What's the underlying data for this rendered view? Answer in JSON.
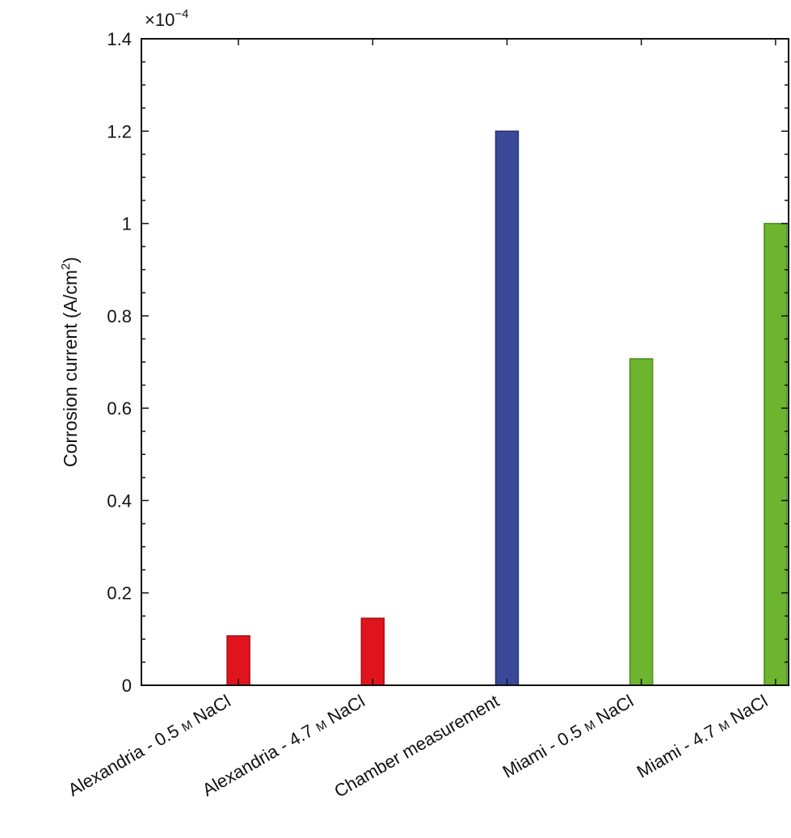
{
  "chart_data": {
    "type": "bar",
    "categories": [
      {
        "pre": "Alexandria - 0.5 ",
        "unit": "M",
        "post": " NaCl"
      },
      {
        "pre": "Alexandria - 4.7 ",
        "unit": "M",
        "post": " NaCl"
      },
      {
        "pre": "Chamber measurement",
        "unit": "",
        "post": ""
      },
      {
        "pre": "Miami - 0.5 ",
        "unit": "M",
        "post": " NaCl"
      },
      {
        "pre": "Miami - 4.7 ",
        "unit": "M",
        "post": " NaCl"
      }
    ],
    "values": [
      0.107,
      0.145,
      1.2,
      0.707,
      1.0
    ],
    "bar_colors": [
      "#e0141c",
      "#e0141c",
      "#3a4899",
      "#6db52f",
      "#6db52f"
    ],
    "bar_edge_colors": [
      "#a01014",
      "#a01014",
      "#28336e",
      "#4b8c1f",
      "#4b8c1f"
    ],
    "ylim": [
      0,
      1.4
    ],
    "yticks": [
      0,
      0.2,
      0.4,
      0.6,
      0.8,
      1,
      1.2,
      1.4
    ],
    "ytick_labels": [
      "0",
      "0.2",
      "0.4",
      "0.6",
      "0.8",
      "1",
      "1.2",
      "1.4"
    ],
    "multiplier": {
      "base": "×10",
      "exponent": "−4"
    },
    "ylabel": {
      "text": "Corrosion current (A/cm",
      "sup": "2",
      "close": ")"
    },
    "xlabel": "",
    "title": "",
    "grid": false,
    "legend": "none"
  }
}
